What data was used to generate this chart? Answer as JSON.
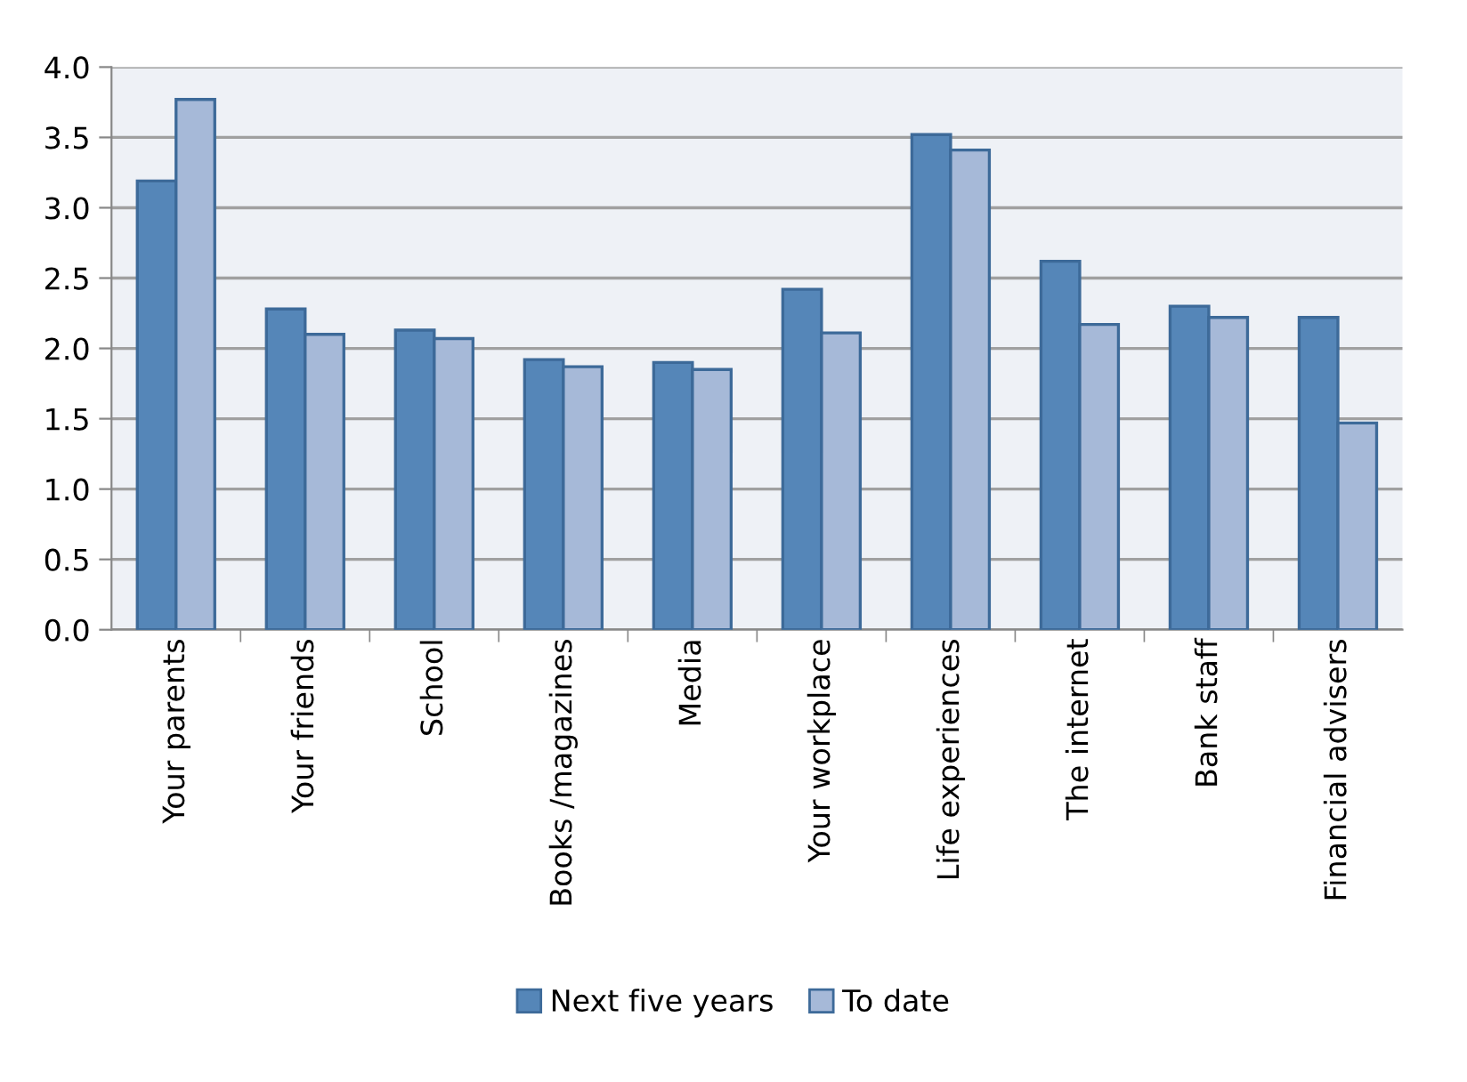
{
  "chart_data": {
    "type": "bar",
    "categories": [
      "Your parents",
      "Your friends",
      "School",
      "Books /magazines",
      "Media",
      "Your workplace",
      "Life experiences",
      "The internet",
      "Bank staff",
      "Financial advisers"
    ],
    "series": [
      {
        "name": "Next five years",
        "color": "#5586b8",
        "values": [
          3.19,
          2.28,
          2.13,
          1.92,
          1.9,
          2.42,
          3.52,
          2.62,
          2.3,
          2.22
        ]
      },
      {
        "name": "To date",
        "color": "#a6b9d8",
        "values": [
          3.77,
          2.1,
          2.07,
          1.87,
          1.85,
          2.11,
          3.41,
          2.17,
          2.22,
          1.47
        ]
      }
    ],
    "ylim": [
      0,
      4
    ],
    "yticks": [
      {
        "value": 0,
        "label": "0.0"
      },
      {
        "value": 0.5,
        "label": "0.5"
      },
      {
        "value": 1,
        "label": "1.0"
      },
      {
        "value": 1.5,
        "label": "1.5"
      },
      {
        "value": 2,
        "label": "2.0"
      },
      {
        "value": 2.5,
        "label": "2.5"
      },
      {
        "value": 3,
        "label": "3.0"
      },
      {
        "value": 3.5,
        "label": "3.5"
      },
      {
        "value": 4,
        "label": "4.0"
      }
    ],
    "grid": "y",
    "legend": "bottom"
  }
}
